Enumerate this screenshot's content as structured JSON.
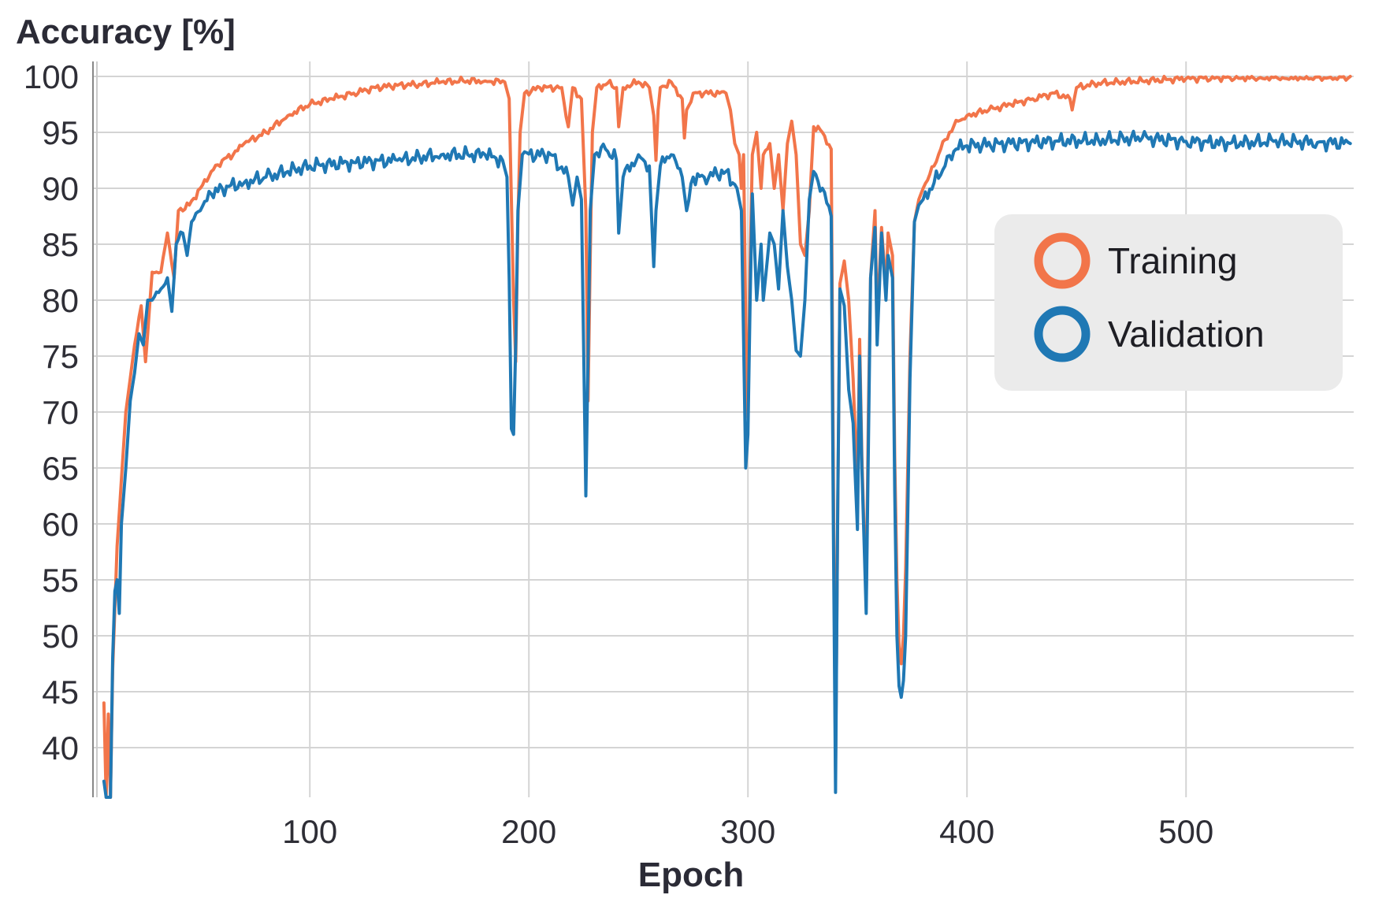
{
  "chart_data": {
    "type": "line",
    "ylabel": "Accuracy [%]",
    "xlabel": "Epoch",
    "xlim": [
      1,
      575
    ],
    "ylim": [
      35.5,
      101.5
    ],
    "x_ticks": [
      100,
      200,
      300,
      400,
      500
    ],
    "y_ticks": [
      40,
      45,
      50,
      55,
      60,
      65,
      70,
      75,
      80,
      85,
      90,
      95,
      100
    ],
    "grid": true,
    "legend_position": "right",
    "series": [
      {
        "name": "Training",
        "color": "#f2754a",
        "anchors": [
          [
            6,
            44
          ],
          [
            7,
            31
          ],
          [
            8,
            43
          ],
          [
            9,
            32
          ],
          [
            10,
            47
          ],
          [
            12,
            58
          ],
          [
            14,
            64
          ],
          [
            16,
            70
          ],
          [
            18,
            73
          ],
          [
            20,
            76
          ],
          [
            23,
            79.5
          ],
          [
            25,
            74.5
          ],
          [
            28,
            82.5
          ],
          [
            32,
            82.5
          ],
          [
            35,
            86
          ],
          [
            38,
            82
          ],
          [
            40,
            88
          ],
          [
            45,
            88.5
          ],
          [
            50,
            90
          ],
          [
            55,
            91.5
          ],
          [
            60,
            92.5
          ],
          [
            65,
            93
          ],
          [
            70,
            94
          ],
          [
            80,
            95
          ],
          [
            90,
            96.5
          ],
          [
            100,
            97.5
          ],
          [
            110,
            98
          ],
          [
            120,
            98.5
          ],
          [
            130,
            99
          ],
          [
            140,
            99.2
          ],
          [
            150,
            99.3
          ],
          [
            160,
            99.5
          ],
          [
            170,
            99.6
          ],
          [
            180,
            99.6
          ],
          [
            189,
            99.5
          ],
          [
            191,
            98
          ],
          [
            192,
            89
          ],
          [
            193,
            80
          ],
          [
            194,
            74.5
          ],
          [
            195,
            87
          ],
          [
            196,
            95
          ],
          [
            198,
            98.5
          ],
          [
            205,
            99
          ],
          [
            215,
            99
          ],
          [
            218,
            95.5
          ],
          [
            220,
            99
          ],
          [
            224,
            98
          ],
          [
            226,
            88
          ],
          [
            227,
            71
          ],
          [
            228,
            84
          ],
          [
            229,
            95
          ],
          [
            231,
            99
          ],
          [
            236,
            99.4
          ],
          [
            240,
            99
          ],
          [
            241,
            95.5
          ],
          [
            243,
            99
          ],
          [
            250,
            99.5
          ],
          [
            255,
            99
          ],
          [
            257,
            96.5
          ],
          [
            258,
            92.5
          ],
          [
            259,
            97
          ],
          [
            260,
            99
          ],
          [
            265,
            99.5
          ],
          [
            270,
            98
          ],
          [
            271,
            94.5
          ],
          [
            272,
            97
          ],
          [
            275,
            98.5
          ],
          [
            280,
            98.5
          ],
          [
            290,
            98.5
          ],
          [
            292,
            97
          ],
          [
            294,
            94
          ],
          [
            296,
            93
          ],
          [
            297,
            90
          ],
          [
            298,
            93
          ],
          [
            299,
            78
          ],
          [
            300,
            69.5
          ],
          [
            301,
            83
          ],
          [
            302,
            93
          ],
          [
            304,
            95
          ],
          [
            306,
            90
          ],
          [
            307,
            93
          ],
          [
            310,
            94
          ],
          [
            312,
            90
          ],
          [
            314,
            93
          ],
          [
            316,
            88
          ],
          [
            318,
            94
          ],
          [
            320,
            96
          ],
          [
            322,
            93
          ],
          [
            324,
            85
          ],
          [
            326,
            84
          ],
          [
            328,
            88
          ],
          [
            330,
            95.5
          ],
          [
            334,
            95
          ],
          [
            338,
            93.5
          ],
          [
            339,
            65
          ],
          [
            340,
            38
          ],
          [
            341,
            61
          ],
          [
            342,
            81.5
          ],
          [
            344,
            83.5
          ],
          [
            346,
            80
          ],
          [
            348,
            73
          ],
          [
            350,
            63
          ],
          [
            351,
            76.5
          ],
          [
            352,
            66
          ],
          [
            354,
            53
          ],
          [
            355,
            70
          ],
          [
            356,
            82
          ],
          [
            358,
            88
          ],
          [
            359,
            78
          ],
          [
            361,
            86.5
          ],
          [
            363,
            81
          ],
          [
            364,
            86
          ],
          [
            366,
            84
          ],
          [
            367,
            66
          ],
          [
            368,
            55
          ],
          [
            369,
            49
          ],
          [
            370,
            47.5
          ],
          [
            371,
            50
          ],
          [
            372,
            56
          ],
          [
            374,
            75
          ],
          [
            376,
            87
          ],
          [
            378,
            89
          ],
          [
            380,
            90
          ],
          [
            385,
            92
          ],
          [
            388,
            93.5
          ],
          [
            392,
            95
          ],
          [
            396,
            96
          ],
          [
            400,
            96.5
          ],
          [
            410,
            97
          ],
          [
            420,
            97.5
          ],
          [
            430,
            98
          ],
          [
            440,
            98.5
          ],
          [
            447,
            98
          ],
          [
            448,
            97
          ],
          [
            450,
            99
          ],
          [
            460,
            99.4
          ],
          [
            480,
            99.6
          ],
          [
            500,
            99.8
          ],
          [
            520,
            99.9
          ],
          [
            540,
            99.9
          ],
          [
            560,
            99.95
          ],
          [
            575,
            100
          ]
        ]
      },
      {
        "name": "Validation",
        "color": "#1f78b4",
        "anchors": [
          [
            6,
            37
          ],
          [
            7,
            31
          ],
          [
            9,
            33
          ],
          [
            10,
            48
          ],
          [
            11,
            54
          ],
          [
            12,
            55
          ],
          [
            13,
            52
          ],
          [
            14,
            60
          ],
          [
            16,
            65
          ],
          [
            18,
            71
          ],
          [
            20,
            73.5
          ],
          [
            22,
            77
          ],
          [
            24,
            76
          ],
          [
            26,
            80
          ],
          [
            28,
            80
          ],
          [
            32,
            81
          ],
          [
            35,
            82
          ],
          [
            37,
            79
          ],
          [
            39,
            85
          ],
          [
            42,
            86
          ],
          [
            44,
            84
          ],
          [
            46,
            87
          ],
          [
            50,
            88
          ],
          [
            55,
            89.5
          ],
          [
            60,
            90
          ],
          [
            70,
            90.5
          ],
          [
            80,
            91
          ],
          [
            90,
            91.5
          ],
          [
            100,
            92
          ],
          [
            120,
            92.3
          ],
          [
            140,
            92.5
          ],
          [
            160,
            93
          ],
          [
            180,
            93
          ],
          [
            188,
            92.5
          ],
          [
            190,
            91
          ],
          [
            191,
            82
          ],
          [
            192,
            68.5
          ],
          [
            193,
            68
          ],
          [
            194,
            76
          ],
          [
            195,
            88
          ],
          [
            197,
            93
          ],
          [
            210,
            93
          ],
          [
            218,
            91
          ],
          [
            220,
            88.5
          ],
          [
            222,
            91
          ],
          [
            224,
            89
          ],
          [
            226,
            62.5
          ],
          [
            227,
            75
          ],
          [
            228,
            88
          ],
          [
            230,
            93
          ],
          [
            235,
            93.5
          ],
          [
            240,
            92.5
          ],
          [
            241,
            86
          ],
          [
            243,
            91
          ],
          [
            250,
            93
          ],
          [
            255,
            92
          ],
          [
            257,
            83
          ],
          [
            258,
            88
          ],
          [
            260,
            92
          ],
          [
            265,
            93
          ],
          [
            270,
            91
          ],
          [
            272,
            88
          ],
          [
            275,
            91
          ],
          [
            280,
            91
          ],
          [
            290,
            91.5
          ],
          [
            295,
            90
          ],
          [
            297,
            88
          ],
          [
            299,
            65
          ],
          [
            300,
            68
          ],
          [
            301,
            80
          ],
          [
            302,
            89.5
          ],
          [
            304,
            80
          ],
          [
            306,
            85
          ],
          [
            307,
            80
          ],
          [
            310,
            86
          ],
          [
            312,
            85
          ],
          [
            314,
            81
          ],
          [
            316,
            88
          ],
          [
            318,
            83
          ],
          [
            320,
            80
          ],
          [
            322,
            75.5
          ],
          [
            324,
            75
          ],
          [
            326,
            80
          ],
          [
            328,
            89
          ],
          [
            330,
            91.5
          ],
          [
            334,
            90
          ],
          [
            338,
            87.5
          ],
          [
            339,
            60
          ],
          [
            340,
            36
          ],
          [
            341,
            62
          ],
          [
            342,
            81
          ],
          [
            344,
            79.5
          ],
          [
            346,
            72
          ],
          [
            348,
            69
          ],
          [
            350,
            59.5
          ],
          [
            351,
            75
          ],
          [
            352,
            65
          ],
          [
            354,
            52
          ],
          [
            355,
            67
          ],
          [
            356,
            82
          ],
          [
            358,
            86.5
          ],
          [
            359,
            76
          ],
          [
            361,
            86
          ],
          [
            363,
            80
          ],
          [
            364,
            84
          ],
          [
            366,
            82
          ],
          [
            367,
            63
          ],
          [
            368,
            50
          ],
          [
            369,
            45.5
          ],
          [
            370,
            44.5
          ],
          [
            371,
            46
          ],
          [
            372,
            50
          ],
          [
            374,
            73
          ],
          [
            376,
            87
          ],
          [
            378,
            88.5
          ],
          [
            380,
            89
          ],
          [
            385,
            90.5
          ],
          [
            390,
            92
          ],
          [
            395,
            93.5
          ],
          [
            400,
            93.8
          ],
          [
            420,
            94
          ],
          [
            440,
            94.2
          ],
          [
            460,
            94.3
          ],
          [
            480,
            94.5
          ],
          [
            500,
            94.2
          ],
          [
            520,
            94
          ],
          [
            540,
            94.2
          ],
          [
            560,
            94.1
          ],
          [
            575,
            94
          ]
        ]
      }
    ]
  }
}
